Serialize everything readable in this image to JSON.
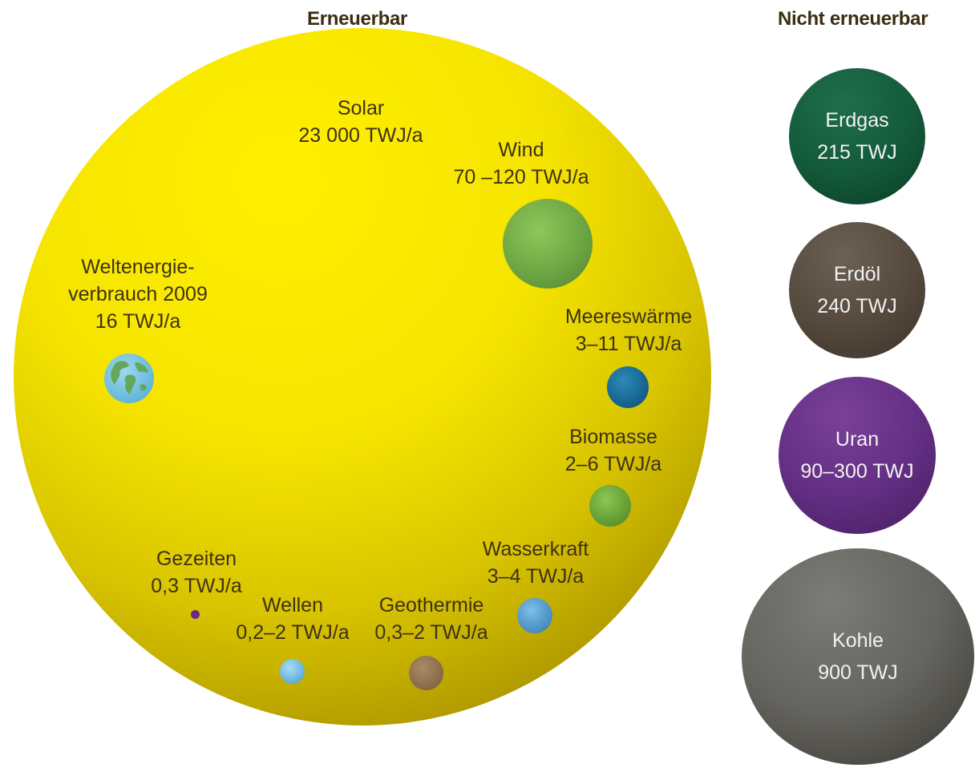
{
  "headings": {
    "renewable": "Erneuerbar",
    "non_renewable": "Nicht erneuerbar"
  },
  "renewable": {
    "solar": {
      "name": "Solar",
      "value": "23 000 TWJ/a"
    },
    "wind": {
      "name": "Wind",
      "value": "70 –120 TWJ/a"
    },
    "world": {
      "name_line1": "Weltenergie-",
      "name_line2": "verbrauch 2009",
      "value": "16 TWJ/a"
    },
    "meereswaerme": {
      "name": "Meereswärme",
      "value": "3–11 TWJ/a"
    },
    "biomasse": {
      "name": "Biomasse",
      "value": "2–6 TWJ/a"
    },
    "wasserkraft": {
      "name": "Wasserkraft",
      "value": "3–4 TWJ/a"
    },
    "geothermie": {
      "name": "Geothermie",
      "value": "0,3–2 TWJ/a"
    },
    "wellen": {
      "name": "Wellen",
      "value": "0,2–2 TWJ/a"
    },
    "gezeiten": {
      "name": "Gezeiten",
      "value": "0,3 TWJ/a"
    }
  },
  "non_renewable": {
    "erdgas": {
      "name": "Erdgas",
      "value": "215 TWJ"
    },
    "erdoel": {
      "name": "Erdöl",
      "value": "240 TWJ"
    },
    "uran": {
      "name": "Uran",
      "value": "90–300 TWJ"
    },
    "kohle": {
      "name": "Kohle",
      "value": "900 TWJ"
    }
  },
  "colors": {
    "solar": "#f5e400",
    "wind": "#6aa341",
    "meereswaerme": "#14628d",
    "biomasse": "#5f9b33",
    "wasserkraft": "#4a8fc6",
    "geothermie": "#8a6a4a",
    "wellen": "#68b1df",
    "gezeiten": "#6a2a88",
    "erdgas": "#135a3a",
    "erdoel": "#54493c",
    "uran": "#622e83",
    "kohle": "#65645f"
  },
  "icons": {
    "earth": "earth-globe-icon"
  }
}
